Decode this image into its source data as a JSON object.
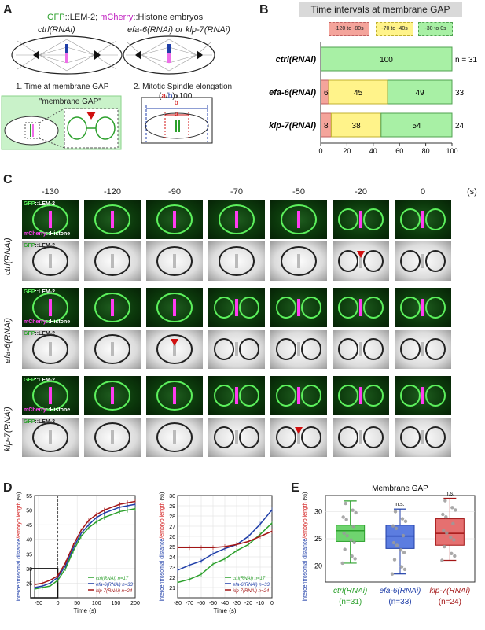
{
  "panelA": {
    "letter": "A",
    "title_gfp": "GFP",
    "title_rest": "::LEM-2; ",
    "title_mch": "mCherry",
    "title_end": "::Histone embryos",
    "ctrl": "ctrl(RNAi)",
    "efa": "efa-6(RNAi) or klp-7(RNAi)",
    "step1": "1. Time at membrane GAP",
    "step2": "2. Mitotic Spindle elongation",
    "formula_open": "(",
    "formula_a": "a",
    "formula_slash": "/",
    "formula_b": "b",
    "formula_close": ")x100",
    "gap_label": "\"membrane GAP\"",
    "a_mark": "a",
    "b_mark": "b"
  },
  "panelB": {
    "letter": "B",
    "title": "Time intervals at membrane GAP",
    "legend": [
      {
        "label": "-120 to -80s",
        "color": "#f4a49b"
      },
      {
        "label": "-70 to -40s",
        "color": "#fff38a"
      },
      {
        "label": "-30 to 0s",
        "color": "#a8f0a5"
      }
    ],
    "xlabel": "% of embryos",
    "ticks": [
      "0",
      "20",
      "40",
      "60",
      "80",
      "100"
    ]
  },
  "chart_data": [
    {
      "type": "bar",
      "categories": [
        "ctrl(RNAi)",
        "efa-6(RNAi)",
        "klp-7(RNAi)"
      ],
      "series": [
        {
          "name": "-120 to -80s",
          "values": [
            0,
            6,
            8
          ]
        },
        {
          "name": "-70 to -40s",
          "values": [
            0,
            45,
            38
          ]
        },
        {
          "name": "-30 to 0s",
          "values": [
            100,
            49,
            54
          ]
        }
      ],
      "n": [
        "n = 31",
        "33",
        "24"
      ],
      "title": "Time intervals at membrane GAP",
      "xlabel": "% of embryos",
      "xlim": [
        0,
        100
      ]
    },
    {
      "type": "line",
      "x": [
        -60,
        -40,
        -20,
        0,
        20,
        40,
        60,
        80,
        100,
        120,
        140,
        160,
        180,
        200
      ],
      "series": [
        {
          "name": "ctrl(RNAi) n=17",
          "values": [
            23,
            23.5,
            24,
            26,
            30,
            36,
            41,
            44,
            46,
            47.5,
            48.5,
            49.5,
            50,
            50.5
          ]
        },
        {
          "name": "efa-6(RNAi) n=33",
          "values": [
            23.5,
            24,
            25,
            27,
            31,
            37,
            42,
            45,
            47.5,
            49,
            50,
            51,
            51.5,
            52
          ]
        },
        {
          "name": "klp-7(RNAi) n=24",
          "values": [
            24.5,
            25,
            26,
            27.5,
            32,
            38,
            43,
            46.5,
            48.5,
            50,
            51,
            52,
            52.5,
            53
          ]
        }
      ],
      "xlabel": "Time (s)",
      "ylabel": "intercentrosomal distance/embryo length (%)",
      "xlim": [
        -60,
        200
      ],
      "ylim": [
        20,
        55
      ]
    },
    {
      "type": "line",
      "x": [
        -80,
        -70,
        -60,
        -50,
        -40,
        -30,
        -20,
        -10,
        0
      ],
      "series": [
        {
          "name": "ctrl(RNAi) n=17",
          "values": [
            21.5,
            21.8,
            22.3,
            23.3,
            23.8,
            24.6,
            25.2,
            26.2,
            27.3
          ]
        },
        {
          "name": "efa-6(RNAi) n=33",
          "values": [
            22.7,
            23.2,
            23.6,
            24.3,
            24.8,
            25.2,
            26.0,
            27.2,
            28.6
          ]
        },
        {
          "name": "klp-7(RNAi) n=24",
          "values": [
            24.9,
            24.9,
            24.9,
            24.9,
            25.0,
            25.2,
            25.5,
            26.0,
            26.5
          ]
        }
      ],
      "xlabel": "Time (s)",
      "ylabel": "intercentrosomal distance/embryo length (%)",
      "xlim": [
        -80,
        0
      ],
      "ylim": [
        20,
        30
      ]
    },
    {
      "type": "box",
      "title": "Membrane GAP",
      "categories": [
        "ctrl(RNAi)",
        "efa-6(RNAi)",
        "klp-7(RNAi)"
      ],
      "n": [
        "(n=31)",
        "(n=33)",
        "(n=24)"
      ],
      "boxes": [
        {
          "min": 20.5,
          "q1": 24.5,
          "median": 26.5,
          "q3": 27.5,
          "max": 32
        },
        {
          "min": 18.5,
          "q1": 23.2,
          "median": 25.5,
          "q3": 27.5,
          "max": 30.5
        },
        {
          "min": 21,
          "q1": 23.8,
          "median": 26,
          "q3": 28.7,
          "max": 32.5
        }
      ],
      "significance": [
        "",
        "n.s.",
        "n.s."
      ],
      "ylabel": "intercentrosomal distance/embryo length (%)",
      "ylim": [
        17,
        33
      ],
      "yticks": [
        "20",
        "25",
        "30"
      ]
    }
  ],
  "panelC": {
    "letter": "C",
    "times": [
      "-130",
      "-120",
      "-90",
      "-70",
      "-50",
      "-20",
      "0"
    ],
    "unit": "(s)",
    "rows": [
      "ctrl(RNAi)",
      "efa-6(RNAi)",
      "klp-7(RNAi)"
    ],
    "gfp_label": "GFP",
    "lem_label": "::LEM-2",
    "mch_label": "mCherry",
    "his_label": "::Histone"
  },
  "panelD": {
    "letter": "D",
    "xlabel": "Time (s)",
    "ylabel_a": "intercentrosomal distance",
    "ylabel_b": "/embryo length",
    "ylabel_c": " (%)"
  },
  "panelE": {
    "letter": "E"
  },
  "colors": {
    "ctrl": "#2ca02c",
    "efa": "#1f3ea8",
    "klp": "#a31515",
    "red": "#f4a49b",
    "yellow": "#fff38a",
    "green": "#a8f0a5"
  }
}
